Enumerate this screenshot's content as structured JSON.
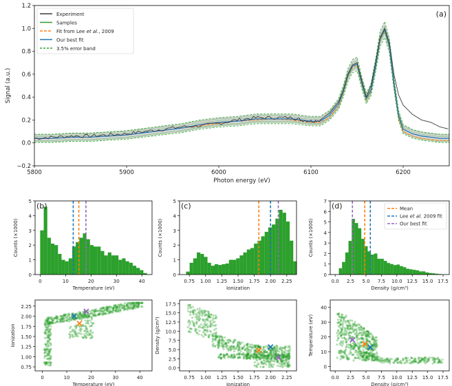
{
  "colors": {
    "experiment": "#3a3a3a",
    "samples": "#2ca02c",
    "lee": "#ff7f0e",
    "best": "#1f77b4",
    "band": "#2ca02c",
    "mean": "#ff7f0e",
    "lee_line": "#1f77b4",
    "best_line": "#9467bd",
    "shade": "#c8c8c8"
  },
  "chart_data": [
    {
      "type": "line",
      "panel_label": "(a)",
      "xlabel": "Photon energy (eV)",
      "ylabel": "Signal (a.u.)",
      "xlim": [
        5800,
        6250
      ],
      "ylim": [
        -0.2,
        1.2
      ],
      "xticks": [
        "5800",
        "5900",
        "6000",
        "6100",
        "6200"
      ],
      "yticks": [
        "−0.2",
        "0.0",
        "0.2",
        "0.4",
        "0.6",
        "0.8",
        "1.0",
        "1.2"
      ],
      "legend_position": "top-left",
      "legend": [
        {
          "pre": "Experiment",
          "italic": "",
          "post": ""
        },
        {
          "pre": "Samples",
          "italic": "",
          "post": ""
        },
        {
          "pre": "Fit from Lee ",
          "italic": "et al.",
          "post": ", 2009"
        },
        {
          "pre": "Our best fit",
          "italic": "",
          "post": ""
        },
        {
          "pre": "3.5% error band",
          "italic": "",
          "post": ""
        }
      ],
      "x": [
        5800,
        5820,
        5840,
        5860,
        5880,
        5900,
        5920,
        5940,
        5960,
        5980,
        6000,
        6020,
        6040,
        6060,
        6080,
        6090,
        6100,
        6110,
        6120,
        6130,
        6135,
        6140,
        6145,
        6150,
        6155,
        6160,
        6165,
        6170,
        6175,
        6180,
        6185,
        6190,
        6195,
        6200,
        6210,
        6220,
        6230,
        6240,
        6250
      ],
      "series": [
        {
          "name": "Experiment",
          "values": [
            0.04,
            0.05,
            0.06,
            0.06,
            0.07,
            0.08,
            0.1,
            0.12,
            0.14,
            0.15,
            0.17,
            0.2,
            0.22,
            0.22,
            0.22,
            0.2,
            0.19,
            0.2,
            0.26,
            0.36,
            0.46,
            0.6,
            0.68,
            0.7,
            0.55,
            0.4,
            0.5,
            0.7,
            0.92,
            1.0,
            0.88,
            0.6,
            0.42,
            0.33,
            0.25,
            0.2,
            0.18,
            0.14,
            0.12
          ]
        },
        {
          "name": "Fit from Lee et al., 2009",
          "values": [
            0.04,
            0.04,
            0.05,
            0.05,
            0.06,
            0.07,
            0.09,
            0.11,
            0.13,
            0.15,
            0.17,
            0.19,
            0.2,
            0.21,
            0.2,
            0.19,
            0.18,
            0.18,
            0.22,
            0.32,
            0.44,
            0.58,
            0.66,
            0.68,
            0.52,
            0.38,
            0.45,
            0.66,
            0.9,
            0.98,
            0.84,
            0.5,
            0.22,
            0.1,
            0.06,
            0.04,
            0.03,
            0.02,
            0.02
          ]
        },
        {
          "name": "Our best fit",
          "values": [
            0.04,
            0.04,
            0.05,
            0.05,
            0.06,
            0.07,
            0.09,
            0.11,
            0.13,
            0.16,
            0.18,
            0.19,
            0.21,
            0.21,
            0.21,
            0.2,
            0.19,
            0.19,
            0.24,
            0.34,
            0.45,
            0.59,
            0.67,
            0.69,
            0.53,
            0.39,
            0.46,
            0.67,
            0.91,
            0.99,
            0.85,
            0.52,
            0.24,
            0.12,
            0.08,
            0.06,
            0.05,
            0.04,
            0.04
          ]
        }
      ],
      "error_band_pct": 3.5
    },
    {
      "type": "bar",
      "panel_label": "(b)",
      "xlabel": "Temperature (eV)",
      "ylabel": "Counts (×1000)",
      "xlim": [
        -2,
        44
      ],
      "ylim": [
        0,
        5
      ],
      "xticks": [
        "0",
        "10",
        "20",
        "30",
        "40"
      ],
      "yticks": [
        "0",
        "1",
        "2",
        "3",
        "4",
        "5"
      ],
      "bin_start": 0,
      "bin_width": 1.4,
      "values": [
        3.0,
        4.6,
        2.5,
        2.1,
        2.0,
        1.4,
        1.0,
        0.9,
        1.1,
        1.9,
        2.2,
        2.5,
        2.8,
        2.4,
        2.0,
        1.9,
        1.9,
        1.6,
        1.3,
        1.5,
        1.3,
        1.3,
        1.0,
        1.1,
        0.9,
        0.8,
        0.6,
        0.45,
        0.3,
        0.1
      ],
      "vlines": {
        "mean": 15.2,
        "lee": 13.0,
        "best": 18.0
      }
    },
    {
      "type": "bar",
      "panel_label": "(c)",
      "xlabel": "Ionization",
      "ylabel": "Counts (×1000)",
      "xlim": [
        0.6,
        2.4
      ],
      "ylim": [
        0,
        5
      ],
      "xticks": [
        "0.75",
        "1.00",
        "1.25",
        "1.50",
        "1.75",
        "2.00",
        "2.25"
      ],
      "yticks": [
        "0",
        "1",
        "2",
        "3",
        "4",
        "5"
      ],
      "bin_start": 0.7,
      "bin_width": 0.055,
      "values": [
        0.2,
        0.8,
        1.1,
        1.5,
        1.4,
        1.2,
        0.8,
        0.6,
        0.7,
        0.65,
        0.7,
        0.75,
        1.0,
        1.0,
        1.1,
        1.3,
        1.5,
        1.7,
        1.8,
        2.1,
        2.3,
        2.6,
        2.9,
        3.2,
        3.4,
        3.8,
        4.4,
        4.2,
        3.6,
        2.3,
        0.9
      ],
      "vlines": {
        "mean": 1.82,
        "lee": 2.0,
        "best": 2.12
      }
    },
    {
      "type": "bar",
      "panel_label": "(d)",
      "xlabel": "Density (g/cm³)",
      "ylabel": "Counts (×1000)",
      "xlim": [
        -0.8,
        18.5
      ],
      "ylim": [
        0,
        7
      ],
      "xticks": [
        "0.0",
        "2.5",
        "5.0",
        "7.5",
        "10.0",
        "12.5",
        "15.0",
        "17.5"
      ],
      "yticks": [
        "0",
        "1",
        "2",
        "3",
        "4",
        "5",
        "6",
        "7"
      ],
      "bin_start": 0.6,
      "bin_width": 0.52,
      "values": [
        0.6,
        1.2,
        2.1,
        3.2,
        5.3,
        4.9,
        4.4,
        3.4,
        2.7,
        2.2,
        1.9,
        2.0,
        1.5,
        1.5,
        1.3,
        1.1,
        1.0,
        0.9,
        0.95,
        0.8,
        0.7,
        0.55,
        0.5,
        0.45,
        0.4,
        0.3,
        0.3,
        0.2,
        0.15,
        0.12,
        0.08,
        0.05
      ],
      "vlines": {
        "mean": 4.8,
        "lee": 5.7,
        "best": 2.8
      },
      "legend_position": "top-right",
      "legend": [
        {
          "pre": "Mean",
          "italic": "",
          "post": ""
        },
        {
          "pre": "Lee ",
          "italic": "et al.",
          "post": " 2009 fit"
        },
        {
          "pre": "Our best fit",
          "italic": "",
          "post": ""
        }
      ]
    },
    {
      "type": "scatter",
      "xlabel": "Temperature (eV)",
      "ylabel": "Ionization",
      "xlim": [
        -3,
        45
      ],
      "ylim": [
        0.65,
        2.4
      ],
      "xticks": [
        "0",
        "10",
        "20",
        "30",
        "40"
      ],
      "yticks": [
        "0.75",
        "1.00",
        "1.25",
        "1.50",
        "1.75",
        "2.00",
        "2.25"
      ],
      "markers": {
        "lee": [
          13.0,
          2.0
        ],
        "mean": [
          15.2,
          1.82
        ],
        "best": [
          18.0,
          2.12
        ]
      }
    },
    {
      "type": "scatter",
      "xlabel": "Ionization",
      "ylabel": "Density (g/cm³)",
      "xlim": [
        0.6,
        2.4
      ],
      "ylim": [
        -0.8,
        18.5
      ],
      "xticks": [
        "0.75",
        "1.00",
        "1.25",
        "1.50",
        "1.75",
        "2.00",
        "2.25"
      ],
      "yticks": [
        "0.0",
        "2.5",
        "5.0",
        "7.5",
        "10.0",
        "12.5",
        "15.0",
        "17.5"
      ],
      "markers": {
        "lee": [
          2.0,
          5.7
        ],
        "mean": [
          1.82,
          4.8
        ],
        "best": [
          2.12,
          2.8
        ]
      }
    },
    {
      "type": "scatter",
      "xlabel": "Density (g/cm³)",
      "ylabel": "Temperature (eV)",
      "xlim": [
        -0.8,
        18.5
      ],
      "ylim": [
        -3,
        45
      ],
      "xticks": [
        "0.0",
        "2.5",
        "5.0",
        "7.5",
        "10.0",
        "12.5",
        "15.0",
        "17.5"
      ],
      "yticks": [
        "0",
        "10",
        "20",
        "30",
        "40"
      ],
      "markers": {
        "lee": [
          5.7,
          13.0
        ],
        "mean": [
          4.8,
          15.2
        ],
        "best": [
          2.8,
          18.0
        ]
      }
    }
  ]
}
